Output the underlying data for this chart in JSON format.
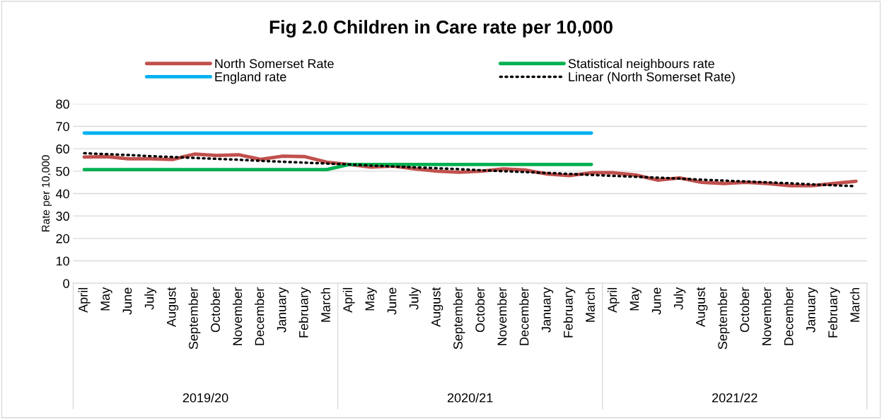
{
  "chart_data": {
    "type": "line",
    "title": "Fig 2.0 Children in Care rate per 10,000",
    "ylabel": "Rate per 10,000",
    "categories": [
      "April",
      "May",
      "June",
      "July",
      "August",
      "September",
      "October",
      "November",
      "December",
      "January",
      "February",
      "March",
      "April",
      "May",
      "June",
      "July",
      "August",
      "September",
      "October",
      "November",
      "December",
      "January",
      "February",
      "March",
      "April",
      "May",
      "June",
      "July",
      "August",
      "September",
      "October",
      "November",
      "December",
      "January",
      "February",
      "March"
    ],
    "annotations": [
      "2019/20",
      "2020/21",
      "2021/22"
    ],
    "series": [
      {
        "name": "North Somerset Rate",
        "color": "#c0504d",
        "values": [
          56.3,
          56.5,
          55.5,
          55.5,
          55.2,
          57.6,
          57.0,
          57.3,
          55.3,
          56.7,
          56.5,
          54.0,
          53.0,
          51.8,
          52.3,
          51.0,
          50.0,
          49.5,
          50.0,
          51.0,
          50.5,
          48.7,
          48.0,
          49.3,
          49.3,
          48.3,
          46.0,
          47.0,
          45.0,
          44.5,
          45.0,
          44.5,
          43.5,
          43.5,
          44.5,
          45.5
        ]
      },
      {
        "name": "Statistical neighbours rate",
        "color": "#00b050",
        "values": [
          50.7,
          50.7,
          50.7,
          50.7,
          50.7,
          50.7,
          50.7,
          50.7,
          50.7,
          50.7,
          50.7,
          50.7,
          53.0,
          53.0,
          53.0,
          53.0,
          53.0,
          53.0,
          53.0,
          53.0,
          53.0,
          53.0,
          53.0,
          53.0,
          null,
          null,
          null,
          null,
          null,
          null,
          null,
          null,
          null,
          null,
          null,
          null
        ]
      },
      {
        "name": "England rate",
        "color": "#00b0f0",
        "values": [
          67,
          67,
          67,
          67,
          67,
          67,
          67,
          67,
          67,
          67,
          67,
          67,
          67,
          67,
          67,
          67,
          67,
          67,
          67,
          67,
          67,
          67,
          67,
          67,
          null,
          null,
          null,
          null,
          null,
          null,
          null,
          null,
          null,
          null,
          null,
          null
        ]
      },
      {
        "name": "Linear (North Somerset Rate)",
        "color": "#000000",
        "line_style": "dotted",
        "values": [
          58.0,
          57.6,
          57.2,
          56.7,
          56.3,
          55.9,
          55.5,
          55.1,
          54.6,
          54.2,
          53.8,
          53.4,
          53.0,
          52.5,
          52.1,
          51.7,
          51.3,
          50.9,
          50.4,
          50.0,
          49.6,
          49.2,
          48.8,
          48.3,
          47.9,
          47.5,
          47.1,
          46.7,
          46.2,
          45.8,
          45.4,
          45.0,
          44.6,
          44.1,
          43.7,
          43.3
        ]
      }
    ],
    "ylim": [
      0,
      80
    ],
    "yticks": [
      0,
      10,
      20,
      30,
      40,
      50,
      60,
      70,
      80
    ],
    "grid": "y",
    "legend": "top",
    "marker": "none",
    "line_style": "solid"
  }
}
